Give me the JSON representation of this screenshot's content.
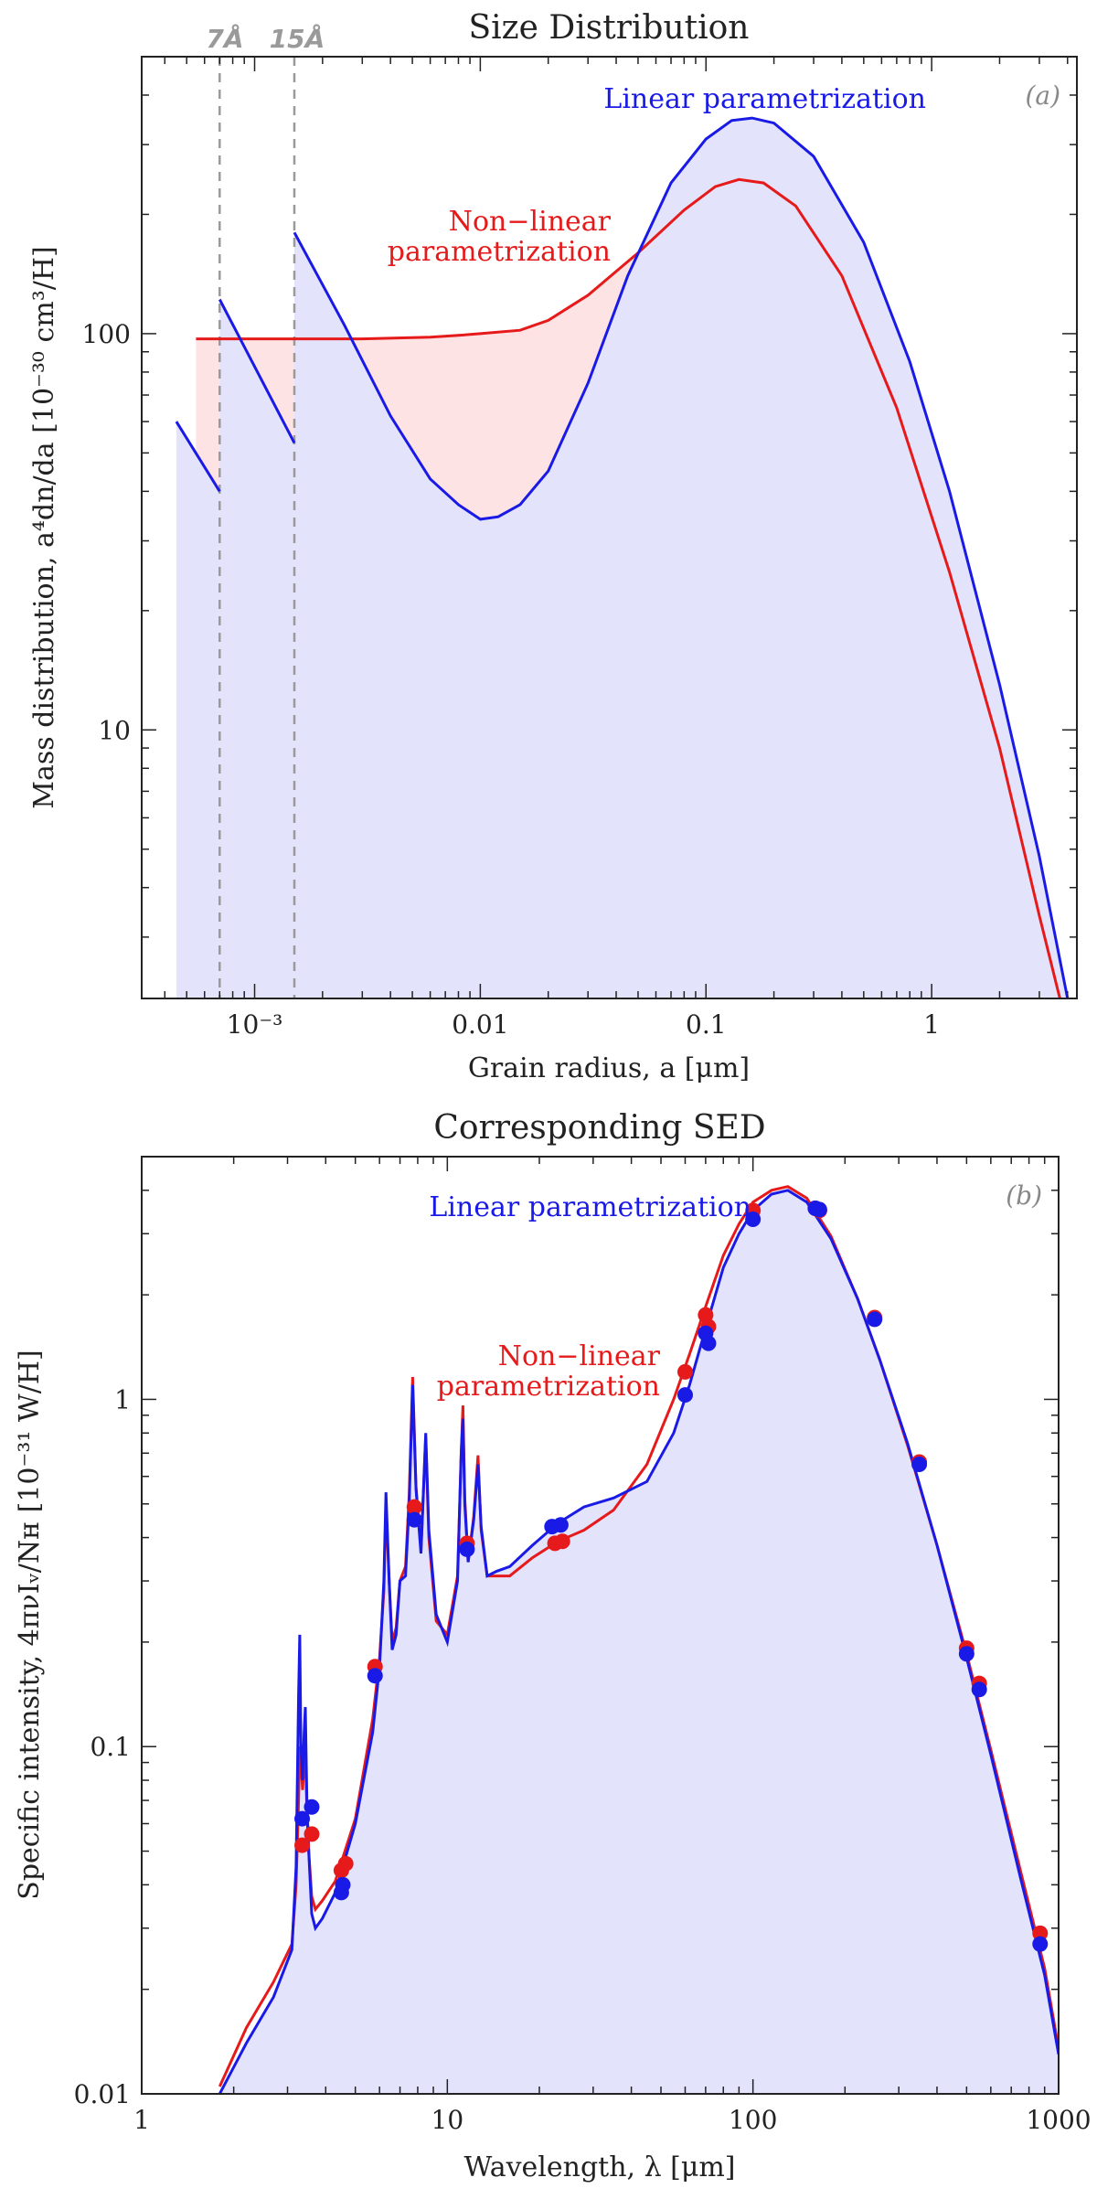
{
  "colors": {
    "linear": "#1a1ae6",
    "nonlinear": "#e61a1a",
    "linear_fill": "#e3e3fb",
    "nonlinear_fill": "#fde3e3",
    "marker_line": "#9a9a9a",
    "axis": "#222222"
  },
  "chart_data": [
    {
      "type": "line",
      "title": "Size Distribution",
      "panel_label": "(a)",
      "xlabel": "Grain radius, a [μm]",
      "ylabel": "Mass distribution, a⁴dn/da [10⁻³⁰ cm³/H]",
      "xscale": "log",
      "yscale": "log",
      "xlim": [
        0.000316,
        4.4
      ],
      "ylim": [
        2.1,
        500
      ],
      "xticks": [
        0.001,
        0.01,
        0.1,
        1
      ],
      "xtick_labels": [
        "10⁻³",
        "0.01",
        "0.1",
        "1"
      ],
      "yticks": [
        10,
        100
      ],
      "ytick_labels": [
        "10",
        "100"
      ],
      "vertical_markers": [
        {
          "x": 0.0007,
          "label": "7Å"
        },
        {
          "x": 0.0015,
          "label": "15Å"
        }
      ],
      "series": [
        {
          "name": "Linear parametrization",
          "color_key": "linear",
          "segments": [
            {
              "x": [
                0.00045,
                0.0007
              ],
              "y": [
                60,
                40
              ]
            },
            {
              "x": [
                0.0007,
                0.0015
              ],
              "y": [
                122,
                53
              ]
            },
            {
              "x": [
                0.0015,
                0.0025,
                0.004,
                0.006,
                0.008,
                0.01,
                0.012,
                0.015,
                0.02,
                0.03,
                0.045,
                0.07,
                0.1,
                0.13,
                0.16,
                0.2,
                0.3,
                0.5,
                0.8,
                1.2,
                2,
                3,
                4
              ],
              "y": [
                180,
                105,
                62,
                43,
                37,
                34,
                34.5,
                37,
                45,
                75,
                140,
                240,
                310,
                345,
                350,
                340,
                280,
                170,
                85,
                40,
                13,
                4.8,
                2.1
              ]
            }
          ]
        },
        {
          "name": "Non-linear parametrization",
          "color_key": "nonlinear",
          "segments": [
            {
              "x": [
                0.00055,
                0.001,
                0.003,
                0.006,
                0.008,
                0.01,
                0.015,
                0.02,
                0.03,
                0.05,
                0.08,
                0.11,
                0.14,
                0.18,
                0.25,
                0.4,
                0.7,
                1.2,
                2,
                3,
                3.7
              ],
              "y": [
                97,
                97,
                97,
                98,
                99,
                100,
                102,
                108,
                125,
                160,
                205,
                235,
                245,
                240,
                210,
                140,
                65,
                25,
                9,
                3.4,
                2.1
              ]
            }
          ]
        }
      ],
      "annotations": [
        {
          "text": "Linear parametrization",
          "color_key": "linear"
        },
        {
          "text": "Non−linear",
          "color_key": "nonlinear"
        },
        {
          "text": "parametrization",
          "color_key": "nonlinear"
        }
      ]
    },
    {
      "type": "line",
      "title": "Corresponding SED",
      "panel_label": "(b)",
      "xlabel": "Wavelength, λ [μm]",
      "ylabel": "Specific intensity, 4πνIᵥ/Nʜ [10⁻³¹ W/H]",
      "xscale": "log",
      "yscale": "log",
      "xlim": [
        1,
        1000
      ],
      "ylim": [
        0.01,
        5
      ],
      "xticks": [
        1,
        10,
        100,
        1000
      ],
      "xtick_labels": [
        "1",
        "10",
        "100",
        "1000"
      ],
      "yticks": [
        0.01,
        0.1,
        1
      ],
      "ytick_labels": [
        "0.01",
        "0.1",
        "1"
      ],
      "series": [
        {
          "name": "Linear parametrization",
          "color_key": "linear",
          "x": [
            1.8,
            2.2,
            2.7,
            3.1,
            3.2,
            3.26,
            3.29,
            3.32,
            3.36,
            3.4,
            3.43,
            3.47,
            3.52,
            3.6,
            3.7,
            3.9,
            4.3,
            5,
            5.7,
            6.0,
            6.2,
            6.3,
            6.45,
            6.6,
            6.8,
            7.0,
            7.3,
            7.5,
            7.7,
            7.9,
            8.2,
            8.5,
            8.7,
            9.2,
            10,
            10.8,
            11.1,
            11.25,
            11.4,
            11.7,
            12.2,
            12.6,
            12.9,
            13.5,
            14.5,
            16,
            19,
            23,
            28,
            35,
            45,
            55,
            62,
            70,
            80,
            90,
            100,
            115,
            130,
            150,
            180,
            220,
            260,
            320,
            400,
            500,
            600,
            750,
            900,
            1000
          ],
          "y": [
            0.01,
            0.014,
            0.019,
            0.026,
            0.045,
            0.14,
            0.21,
            0.1,
            0.08,
            0.11,
            0.13,
            0.07,
            0.05,
            0.033,
            0.03,
            0.032,
            0.038,
            0.06,
            0.11,
            0.17,
            0.3,
            0.54,
            0.3,
            0.19,
            0.21,
            0.3,
            0.31,
            0.5,
            1.1,
            0.55,
            0.36,
            0.8,
            0.42,
            0.24,
            0.2,
            0.3,
            0.7,
            0.88,
            0.5,
            0.34,
            0.45,
            0.65,
            0.43,
            0.31,
            0.32,
            0.33,
            0.38,
            0.44,
            0.49,
            0.52,
            0.58,
            0.8,
            1.1,
            1.6,
            2.4,
            3.0,
            3.5,
            3.9,
            4.0,
            3.7,
            2.9,
            1.95,
            1.3,
            0.75,
            0.38,
            0.18,
            0.095,
            0.042,
            0.022,
            0.013
          ]
        },
        {
          "name": "Non-linear parametrization",
          "color_key": "nonlinear",
          "x": [
            1.8,
            2.2,
            2.7,
            3.1,
            3.2,
            3.26,
            3.29,
            3.32,
            3.36,
            3.4,
            3.43,
            3.47,
            3.52,
            3.6,
            3.7,
            3.9,
            4.3,
            5,
            5.7,
            6.0,
            6.2,
            6.3,
            6.45,
            6.6,
            6.8,
            7.0,
            7.3,
            7.5,
            7.7,
            7.9,
            8.2,
            8.5,
            8.7,
            9.2,
            10,
            10.8,
            11.1,
            11.25,
            11.4,
            11.7,
            12.2,
            12.6,
            12.9,
            13.5,
            14.5,
            16,
            19,
            23,
            28,
            35,
            45,
            55,
            62,
            70,
            80,
            90,
            100,
            115,
            130,
            150,
            180,
            220,
            260,
            320,
            400,
            500,
            600,
            750,
            900,
            1000
          ],
          "y": [
            0.0105,
            0.0155,
            0.021,
            0.027,
            0.04,
            0.07,
            0.1,
            0.09,
            0.075,
            0.09,
            0.1,
            0.065,
            0.05,
            0.037,
            0.034,
            0.036,
            0.041,
            0.062,
            0.12,
            0.18,
            0.28,
            0.5,
            0.3,
            0.2,
            0.22,
            0.3,
            0.33,
            0.53,
            1.16,
            0.56,
            0.37,
            0.78,
            0.4,
            0.23,
            0.21,
            0.31,
            0.7,
            0.96,
            0.52,
            0.34,
            0.46,
            0.69,
            0.42,
            0.31,
            0.31,
            0.31,
            0.35,
            0.39,
            0.42,
            0.48,
            0.65,
            1.0,
            1.35,
            1.85,
            2.6,
            3.2,
            3.7,
            4.0,
            4.1,
            3.8,
            2.95,
            1.95,
            1.3,
            0.74,
            0.38,
            0.185,
            0.098,
            0.044,
            0.023,
            0.0135
          ]
        }
      ],
      "points": [
        {
          "name": "Linear parametrization",
          "color_key": "linear",
          "x": [
            3.35,
            3.6,
            4.5,
            4.55,
            5.8,
            7.8,
            11.6,
            22,
            23.5,
            60,
            70,
            71.5,
            100,
            160,
            165,
            250,
            350,
            500,
            550,
            870
          ],
          "y": [
            0.062,
            0.067,
            0.038,
            0.04,
            0.16,
            0.45,
            0.37,
            0.43,
            0.435,
            1.03,
            1.55,
            1.45,
            3.3,
            3.55,
            3.52,
            1.7,
            0.65,
            0.185,
            0.146,
            0.027
          ]
        },
        {
          "name": "Non-linear parametrization",
          "color_key": "nonlinear",
          "x": [
            3.35,
            3.6,
            4.5,
            4.65,
            5.8,
            7.8,
            11.6,
            22.5,
            23.8,
            60,
            70,
            71.5,
            100,
            160,
            165,
            250,
            350,
            500,
            550,
            870
          ],
          "y": [
            0.052,
            0.056,
            0.044,
            0.046,
            0.17,
            0.49,
            0.385,
            0.385,
            0.39,
            1.2,
            1.75,
            1.62,
            3.5,
            3.55,
            3.5,
            1.72,
            0.66,
            0.192,
            0.152,
            0.029
          ]
        }
      ],
      "annotations": [
        {
          "text": "Linear parametrization",
          "color_key": "linear"
        },
        {
          "text": "Non−linear",
          "color_key": "nonlinear"
        },
        {
          "text": "parametrization",
          "color_key": "nonlinear"
        }
      ]
    }
  ]
}
